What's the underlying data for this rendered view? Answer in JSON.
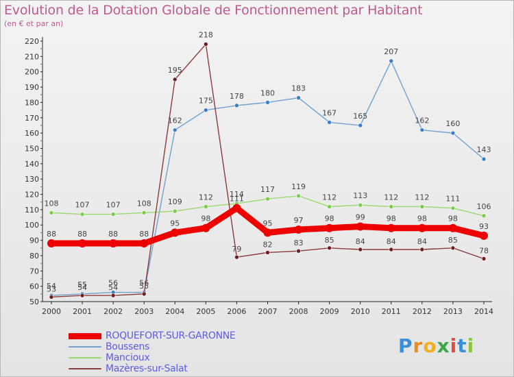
{
  "header": {
    "title": "Evolution de la Dotation Globale de Fonctionnement par Habitant",
    "subtitle": "(en € et par an)"
  },
  "logo": {
    "letters": [
      "P",
      "r",
      "o",
      "x",
      "i",
      "t",
      "i"
    ],
    "colors": [
      "#3a8fd8",
      "#f08a1a",
      "#f2b01e",
      "#3aa84a",
      "#e84a3a",
      "#3a8fd8",
      "#8cc63f"
    ]
  },
  "chart_data": {
    "type": "line",
    "title": "Evolution de la Dotation Globale de Fonctionnement par Habitant",
    "subtitle": "(en € et par an)",
    "xlabel": "",
    "ylabel": "",
    "ylim": [
      50,
      220
    ],
    "ytick_step": 10,
    "grid": false,
    "categories": [
      "2000",
      "2001",
      "2002",
      "2003",
      "2004",
      "2005",
      "2006",
      "2007",
      "2008",
      "2009",
      "2010",
      "2011",
      "2012",
      "2013",
      "2014"
    ],
    "series": [
      {
        "name": "Boussens",
        "color": "#6fa0d0",
        "marker": "#3a7ec8",
        "values": [
          54,
          55,
          56,
          56,
          162,
          175,
          178,
          180,
          183,
          167,
          165,
          207,
          162,
          160,
          143
        ]
      },
      {
        "name": "Mancioux",
        "color": "#9ad870",
        "marker": "#7ccc4a",
        "values": [
          108,
          107,
          107,
          108,
          109,
          112,
          114,
          117,
          119,
          112,
          113,
          112,
          112,
          111,
          106
        ]
      },
      {
        "name": "Mazères-sur-Salat",
        "color": "#8a3a3a",
        "marker": "#6e1e1e",
        "values": [
          53,
          54,
          54,
          55,
          195,
          218,
          79,
          82,
          83,
          85,
          84,
          84,
          84,
          85,
          78
        ]
      },
      {
        "name": "ROQUEFORT-SUR-GARONNE",
        "color": "#ee0000",
        "marker": "#ee0000",
        "values": [
          88,
          88,
          88,
          88,
          95,
          98,
          111,
          95,
          97,
          98,
          99,
          98,
          98,
          98,
          93
        ]
      }
    ],
    "legend": {
      "placement": "bottom-left",
      "entries": [
        {
          "label": "ROQUEFORT-SUR-GARONNE",
          "color": "#ee0000",
          "thick": true
        },
        {
          "label": "Boussens",
          "color": "#6fa0d0",
          "thick": false
        },
        {
          "label": "Mancioux",
          "color": "#9ad870",
          "thick": false
        },
        {
          "label": "Mazères-sur-Salat",
          "color": "#8a3a3a",
          "thick": false
        }
      ]
    }
  }
}
